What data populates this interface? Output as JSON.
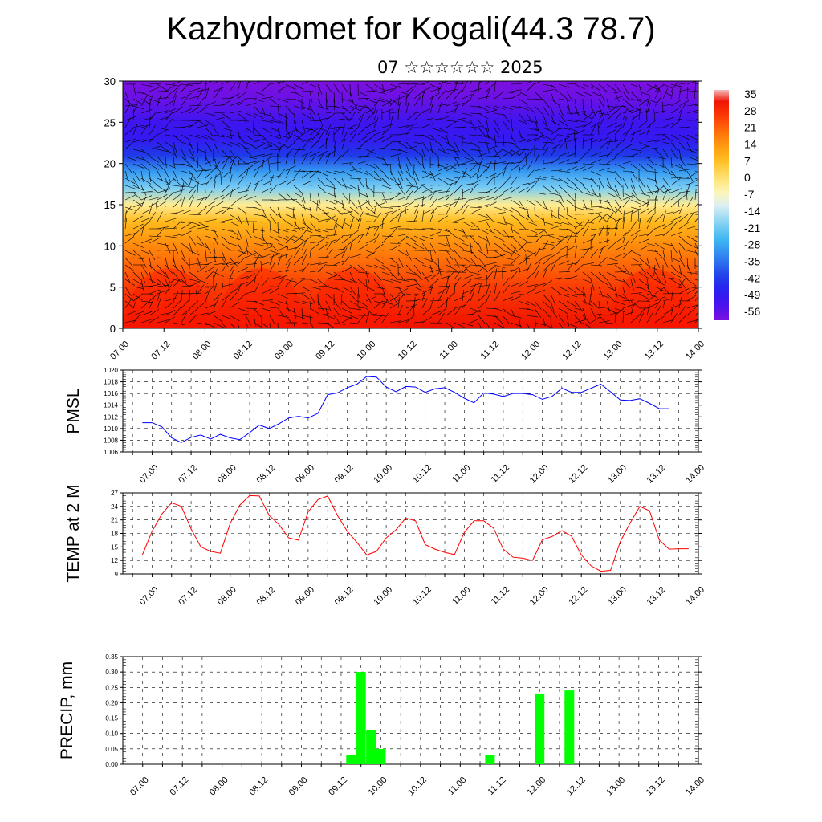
{
  "title": "Kazhydromet for Kogali(44.3 78.7)",
  "subtitle": "07 ☆☆☆☆☆☆ 2025",
  "time_labels": [
    "07.00",
    "07.12",
    "08.00",
    "08.12",
    "09.00",
    "09.12",
    "10.00",
    "10.12",
    "11.00",
    "11.12",
    "12.00",
    "12.12",
    "13.00",
    "13.12",
    "14.00"
  ],
  "chart_data": [
    {
      "type": "heatmap",
      "ylim": [
        0,
        30
      ],
      "y_ticks": [
        0,
        5,
        10,
        15,
        20,
        25,
        30
      ],
      "x_ticks": [
        "07.00",
        "07.12",
        "08.00",
        "08.12",
        "09.00",
        "09.12",
        "10.00",
        "10.12",
        "11.00",
        "11.12",
        "12.00",
        "12.12",
        "13.00",
        "13.12",
        "14.00"
      ],
      "colorbar_labels": [
        "35",
        "28",
        "21",
        "14",
        "7",
        "0",
        "-7",
        "-14",
        "-21",
        "-28",
        "-35",
        "-42",
        "-49",
        "-56"
      ],
      "temperature_profile": {
        "levels": [
          0,
          5,
          10,
          13,
          15,
          17,
          19,
          21,
          23,
          25,
          28,
          30
        ],
        "values": [
          30,
          24,
          14,
          6,
          -5,
          -22,
          -32,
          -44,
          -52,
          -54,
          -60,
          -62
        ]
      },
      "overlay": "wind barbs"
    },
    {
      "type": "line",
      "ylabel": "PMSL",
      "ylim": [
        1006,
        1020
      ],
      "y_ticks": [
        "1006",
        "1008",
        "1010",
        "1012",
        "1014",
        "1016",
        "1018",
        "1020"
      ],
      "x_ticks": [
        "07.00",
        "07.12",
        "08.00",
        "08.12",
        "09.00",
        "09.12",
        "10.00",
        "10.12",
        "11.00",
        "11.12",
        "12.00",
        "12.12",
        "13.00",
        "13.12",
        "14.00"
      ],
      "color": "#0000ff",
      "x_start_hours": -3,
      "x_step_hours": 3,
      "values": [
        1011.0,
        1011.0,
        1010.3,
        1008.4,
        1007.6,
        1008.5,
        1008.9,
        1008.2,
        1009.0,
        1008.4,
        1008.1,
        1009.3,
        1010.6,
        1010.0,
        1010.8,
        1011.8,
        1012.1,
        1011.8,
        1012.6,
        1015.8,
        1016.1,
        1017.0,
        1017.6,
        1018.9,
        1018.8,
        1017.1,
        1016.3,
        1017.2,
        1017.1,
        1016.2,
        1016.8,
        1017.0,
        1016.2,
        1015.2,
        1014.4,
        1016.1,
        1015.9,
        1015.5,
        1016.0,
        1016.0,
        1015.8,
        1015.0,
        1015.5,
        1016.9,
        1016.2,
        1016.2,
        1016.9,
        1017.6,
        1016.3,
        1014.9,
        1014.8,
        1015.1,
        1014.3,
        1013.4,
        1013.4
      ]
    },
    {
      "type": "line",
      "ylabel": "TEMP at 2 M",
      "ylim": [
        9,
        27
      ],
      "y_ticks": [
        "9",
        "12",
        "15",
        "18",
        "21",
        "24",
        "27"
      ],
      "x_ticks": [
        "07.00",
        "07.12",
        "08.00",
        "08.12",
        "09.00",
        "09.12",
        "10.00",
        "10.12",
        "11.00",
        "11.12",
        "12.00",
        "12.12",
        "13.00",
        "13.12",
        "14.00"
      ],
      "color": "#ff0000",
      "x_start_hours": -3,
      "x_step_hours": 3,
      "values": [
        13.2,
        18.5,
        22.3,
        24.8,
        24.0,
        19.0,
        15.0,
        14.0,
        13.6,
        20.2,
        24.3,
        26.4,
        26.3,
        22.0,
        20.0,
        17.0,
        16.5,
        22.8,
        25.5,
        26.3,
        22.0,
        18.5,
        16.0,
        13.2,
        14.0,
        17.0,
        18.8,
        21.4,
        20.8,
        15.5,
        14.5,
        13.8,
        13.3,
        18.2,
        20.8,
        20.8,
        19.2,
        14.5,
        12.7,
        12.5,
        12.0,
        16.6,
        17.3,
        18.6,
        17.4,
        13.2,
        10.8,
        9.6,
        9.8,
        16.2,
        20.3,
        24.0,
        23.0,
        16.5,
        14.5,
        14.6,
        14.6
      ]
    },
    {
      "type": "bar",
      "ylabel": "PRECIP, mm",
      "ylim": [
        0,
        0.35
      ],
      "y_ticks": [
        "0.00",
        "0.05",
        "0.10",
        "0.15",
        "0.20",
        "0.25",
        "0.30",
        "0.35"
      ],
      "x_ticks": [
        "07.00",
        "07.12",
        "08.00",
        "08.12",
        "09.00",
        "09.12",
        "10.00",
        "10.12",
        "11.00",
        "11.12",
        "12.00",
        "12.12",
        "13.00",
        "13.12",
        "14.00"
      ],
      "color": "#00ff00",
      "bars": [
        {
          "hours": 63,
          "value": 0.03
        },
        {
          "hours": 66,
          "value": 0.3
        },
        {
          "hours": 69,
          "value": 0.11
        },
        {
          "hours": 72,
          "value": 0.05
        },
        {
          "hours": 105,
          "value": 0.03
        },
        {
          "hours": 120,
          "value": 0.23
        },
        {
          "hours": 129,
          "value": 0.24
        }
      ]
    }
  ]
}
